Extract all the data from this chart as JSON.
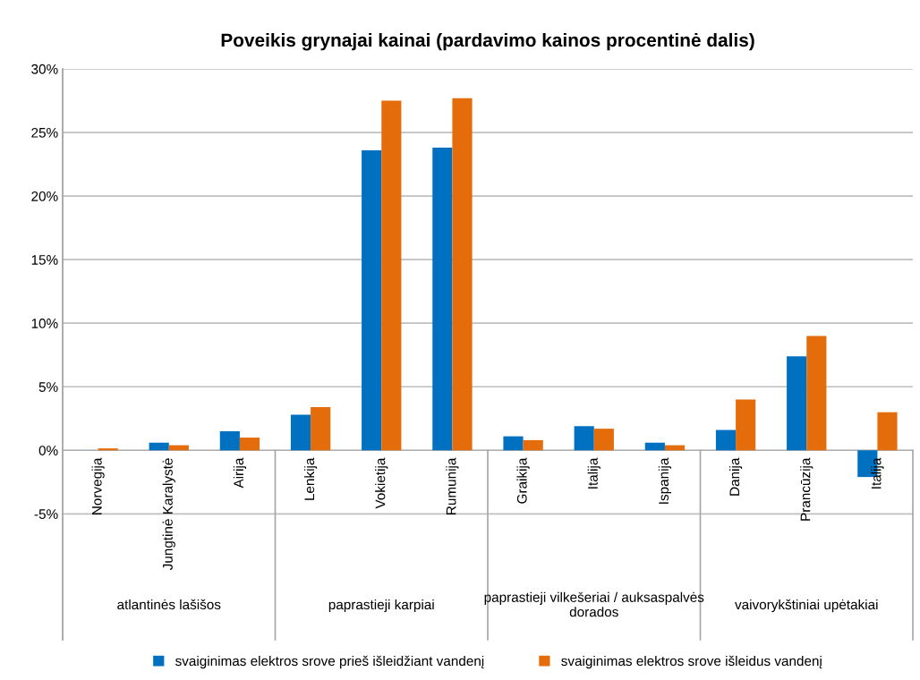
{
  "chart_data": {
    "type": "bar",
    "title": "Poveikis grynajai kainai (pardavimo kainos procentinė dalis)",
    "categories": [
      "Norvegija",
      "Jungtinė Karalystė",
      "Airija",
      "Lenkija",
      "Vokietija",
      "Rumunija",
      "Graikija",
      "Italija",
      "Ispanija",
      "Danija",
      "Prancūzija",
      "Italija"
    ],
    "series": [
      {
        "name": "svaiginimas elektros srove prieš išleidžiant vandenį",
        "color": "#0070c0",
        "values": [
          0,
          0.6,
          1.5,
          2.8,
          23.6,
          23.8,
          1.1,
          1.9,
          0.6,
          1.6,
          7.4,
          -2.1
        ]
      },
      {
        "name": "svaiginimas elektros srove išleidus vandenį",
        "color": "#e46c0a",
        "values": [
          0.15,
          0.4,
          1.0,
          3.4,
          27.5,
          27.7,
          0.8,
          1.7,
          0.4,
          4.0,
          9.0,
          3.0
        ]
      }
    ],
    "annotations": [
      "atlantinės lašišos",
      "paprastieji karpiai",
      "paprastieji vilkešeriai / auksaspalvės dorados",
      "vaivorykštiniai upėtakiai"
    ],
    "ylim": [
      -14.9,
      30
    ],
    "yticks": [
      {
        "value": -5,
        "label": "-5%"
      },
      {
        "value": 0,
        "label": "0%"
      },
      {
        "value": 5,
        "label": "5%"
      },
      {
        "value": 10,
        "label": "10%"
      },
      {
        "value": 15,
        "label": "15%"
      },
      {
        "value": 20,
        "label": "20%"
      },
      {
        "value": 25,
        "label": "25%"
      },
      {
        "value": 30,
        "label": "30%"
      }
    ],
    "grid": "y",
    "legend": "bottom"
  }
}
